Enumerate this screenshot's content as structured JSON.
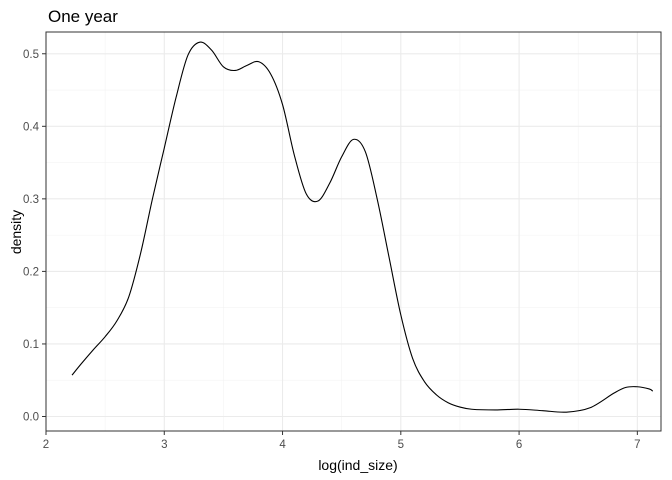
{
  "chart_data": {
    "type": "line",
    "title": "One year",
    "xlabel": "log(ind_size)",
    "ylabel": "density",
    "xlim": [
      2.0,
      7.2
    ],
    "ylim": [
      -0.02,
      0.53
    ],
    "x_ticks": [
      2,
      3,
      4,
      5,
      6,
      7
    ],
    "x_tick_labels": [
      "2",
      "3",
      "4",
      "5",
      "6",
      "7"
    ],
    "y_ticks": [
      0.0,
      0.1,
      0.2,
      0.3,
      0.4,
      0.5
    ],
    "y_tick_labels": [
      "0.0",
      "0.1",
      "0.2",
      "0.3",
      "0.4",
      "0.5"
    ],
    "x_minor_ticks": [
      2.5,
      3.5,
      4.5,
      5.5,
      6.5
    ],
    "y_minor_ticks": [
      0.05,
      0.15,
      0.25,
      0.35,
      0.45
    ],
    "grid": true,
    "colors": {
      "line": "#000000",
      "grid": "#ebebeb",
      "panel_border": "#333333"
    },
    "series": [
      {
        "x": [
          2.22,
          2.3,
          2.4,
          2.5,
          2.6,
          2.7,
          2.8,
          2.9,
          3.0,
          3.1,
          3.2,
          3.3,
          3.4,
          3.5,
          3.6,
          3.7,
          3.8,
          3.9,
          4.0,
          4.1,
          4.2,
          4.3,
          4.4,
          4.5,
          4.6,
          4.7,
          4.8,
          4.9,
          5.0,
          5.1,
          5.2,
          5.3,
          5.4,
          5.5,
          5.6,
          5.8,
          6.0,
          6.2,
          6.4,
          6.6,
          6.8,
          6.9,
          7.0,
          7.1,
          7.13
        ],
        "y": [
          0.057,
          0.073,
          0.092,
          0.11,
          0.132,
          0.165,
          0.225,
          0.3,
          0.37,
          0.44,
          0.498,
          0.516,
          0.505,
          0.482,
          0.477,
          0.484,
          0.489,
          0.472,
          0.43,
          0.36,
          0.307,
          0.297,
          0.322,
          0.358,
          0.382,
          0.365,
          0.3,
          0.22,
          0.14,
          0.08,
          0.048,
          0.03,
          0.019,
          0.013,
          0.01,
          0.009,
          0.01,
          0.008,
          0.006,
          0.012,
          0.032,
          0.04,
          0.041,
          0.038,
          0.035
        ]
      }
    ]
  }
}
